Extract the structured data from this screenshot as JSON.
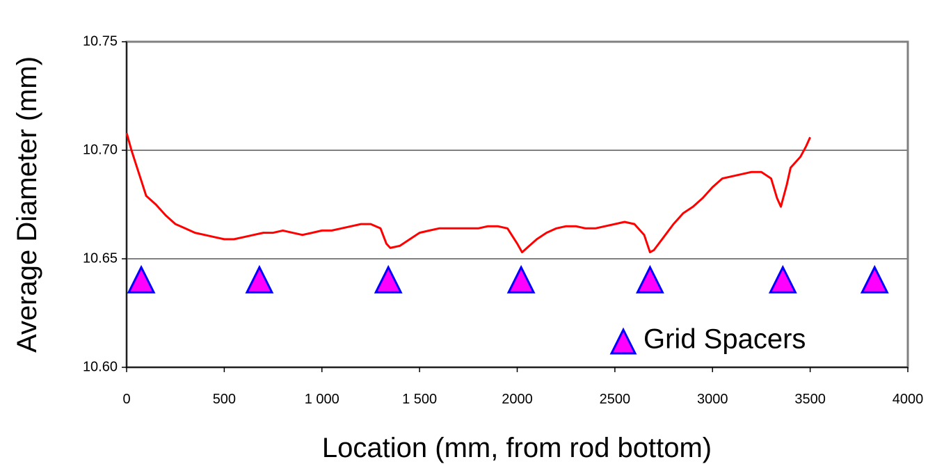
{
  "chart_data": {
    "type": "line",
    "title": "",
    "xlabel": "Location (mm, from rod bottom)",
    "ylabel": "Average Diameter (mm)",
    "xlim": [
      0,
      4000
    ],
    "ylim": [
      10.6,
      10.75
    ],
    "x_ticks": [
      "0",
      "500",
      "1 000",
      "1 500",
      "2000",
      "2500",
      "3000",
      "3500",
      "4000"
    ],
    "y_ticks": [
      "10.60",
      "10.65",
      "10.70",
      "10.75"
    ],
    "grid": "horizontal",
    "series": [
      {
        "type": "line",
        "color": "#ff0000",
        "x": [
          0,
          25,
          50,
          75,
          100,
          150,
          200,
          250,
          300,
          350,
          400,
          450,
          500,
          550,
          600,
          650,
          700,
          750,
          800,
          850,
          900,
          950,
          1000,
          1050,
          1100,
          1150,
          1200,
          1250,
          1300,
          1330,
          1350,
          1400,
          1450,
          1500,
          1550,
          1600,
          1650,
          1700,
          1750,
          1800,
          1850,
          1900,
          1950,
          2000,
          2025,
          2050,
          2100,
          2150,
          2200,
          2250,
          2300,
          2350,
          2400,
          2450,
          2500,
          2550,
          2600,
          2650,
          2680,
          2700,
          2750,
          2800,
          2850,
          2900,
          2950,
          3000,
          3050,
          3100,
          3150,
          3200,
          3250,
          3300,
          3330,
          3350,
          3380,
          3400,
          3420,
          3450,
          3480,
          3500
        ],
        "y": [
          10.708,
          10.7,
          10.693,
          10.686,
          10.679,
          10.675,
          10.67,
          10.666,
          10.664,
          10.662,
          10.661,
          10.66,
          10.659,
          10.659,
          10.66,
          10.661,
          10.662,
          10.662,
          10.663,
          10.662,
          10.661,
          10.662,
          10.663,
          10.663,
          10.664,
          10.665,
          10.666,
          10.666,
          10.664,
          10.657,
          10.655,
          10.656,
          10.659,
          10.662,
          10.663,
          10.664,
          10.664,
          10.664,
          10.664,
          10.664,
          10.665,
          10.665,
          10.664,
          10.657,
          10.653,
          10.655,
          10.659,
          10.662,
          10.664,
          10.665,
          10.665,
          10.664,
          10.664,
          10.665,
          10.666,
          10.667,
          10.666,
          10.661,
          10.653,
          10.654,
          10.66,
          10.666,
          10.671,
          10.674,
          10.678,
          10.683,
          10.687,
          10.688,
          10.689,
          10.69,
          10.69,
          10.687,
          10.678,
          10.674,
          10.684,
          10.692,
          10.694,
          10.697,
          10.702,
          10.706
        ]
      }
    ],
    "markers": {
      "name": "Grid Spacers",
      "color": "#ff00ff",
      "edge_color": "#0000ff",
      "x": [
        75,
        680,
        1340,
        2020,
        2680,
        3360,
        3830
      ],
      "y": [
        10.64,
        10.64,
        10.64,
        10.64,
        10.64,
        10.64,
        10.64
      ]
    },
    "legend": "bottom-right"
  }
}
